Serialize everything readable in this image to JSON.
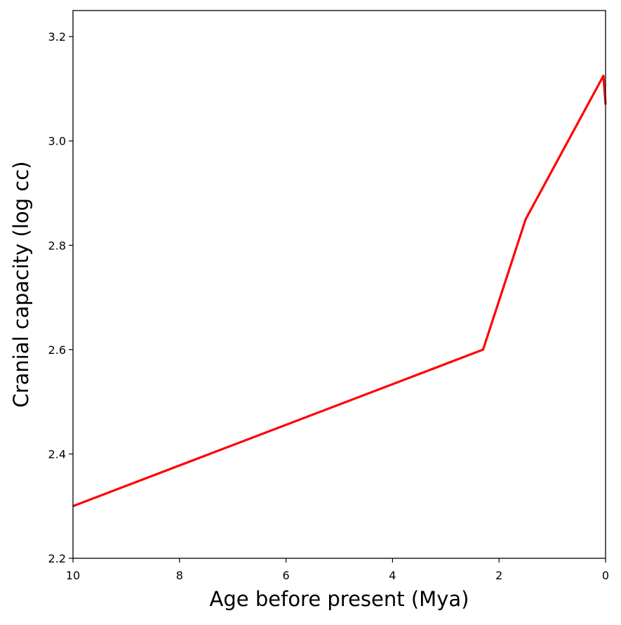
{
  "chart_data": {
    "type": "line",
    "title": "",
    "xlabel": "Age before present (Mya)",
    "ylabel": "Cranial capacity (log cc)",
    "xlim": [
      10,
      0
    ],
    "x_inverted": true,
    "ylim": [
      2.2,
      3.25
    ],
    "xticks": [
      10,
      8,
      6,
      4,
      2,
      0
    ],
    "xtick_labels": [
      "10",
      "8",
      "6",
      "4",
      "2",
      "0"
    ],
    "yticks": [
      2.2,
      2.4,
      2.6,
      2.8,
      3.0,
      3.2
    ],
    "ytick_labels": [
      "2.2",
      "2.4",
      "2.6",
      "2.8",
      "3.0",
      "3.2"
    ],
    "grid": false,
    "legend": "none",
    "series": [
      {
        "color": "#ff0000",
        "x": [
          10,
          2.3,
          1.5,
          0.04,
          0.0
        ],
        "y": [
          2.3,
          2.6,
          2.85,
          3.125,
          3.07
        ]
      }
    ]
  }
}
